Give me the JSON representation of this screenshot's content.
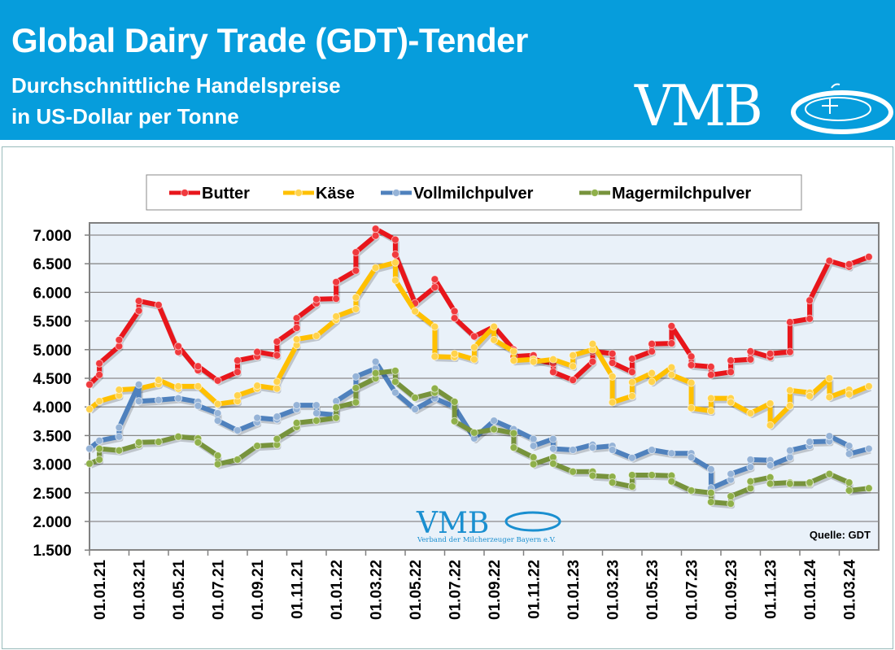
{
  "header": {
    "title": "Global Dairy Trade (GDT)-Tender",
    "subtitle_line1": "Durchschnittliche Handelspreise",
    "subtitle_line2": "in US-Dollar per Tonne",
    "logo_text": "VMB"
  },
  "watermark": {
    "logo_text": "VMB",
    "org_name": "Verband der Milcherzeuger Bayern e.V."
  },
  "colors": {
    "header_bg": "#069ddc",
    "plot_bg": "#e9f1f9",
    "grid": "#8a8a8a"
  },
  "chart_data": {
    "type": "line",
    "title": "Global Dairy Trade (GDT)-Tender",
    "ylabel": "US-Dollar per Tonne",
    "source": "Quelle:  GDT",
    "x_unit": "months since 01.01.21",
    "ylim": [
      1500,
      7000
    ],
    "yticks": [
      "7.000",
      "6.500",
      "6.000",
      "5.500",
      "5.000",
      "4.500",
      "4.000",
      "3.500",
      "3.000",
      "2.500",
      "2.000",
      "1.500"
    ],
    "ytick_values": [
      7000,
      6500,
      6000,
      5500,
      5000,
      4500,
      4000,
      3500,
      3000,
      2500,
      2000,
      1500
    ],
    "xticks": [
      "01.01.21",
      "01.03.21",
      "01.05.21",
      "01.07.21",
      "01.09.21",
      "01.11.21",
      "01.01.22",
      "01.03.22",
      "01.05.22",
      "01.07.22",
      "01.09.22",
      "01.11.22",
      "01.01.23",
      "01.03.23",
      "01.05.23",
      "01.07.23",
      "01.09.23",
      "01.11.23",
      "01.01.24",
      "01.03.24"
    ],
    "grid": true,
    "legend_position": "top",
    "series": [
      {
        "name": "Butter",
        "color": "#e8161b",
        "marker": "#f03a3e",
        "points": [
          [
            0,
            4390
          ],
          [
            0.5,
            4560
          ],
          [
            0.5,
            4760
          ],
          [
            1.5,
            5060
          ],
          [
            1.5,
            5170
          ],
          [
            2.5,
            5680
          ],
          [
            2.5,
            5850
          ],
          [
            3.5,
            5780
          ],
          [
            4.5,
            4960
          ],
          [
            4.5,
            5060
          ],
          [
            5.5,
            4640
          ],
          [
            5.5,
            4710
          ],
          [
            6.5,
            4460
          ],
          [
            7.5,
            4610
          ],
          [
            7.5,
            4810
          ],
          [
            8.5,
            4880
          ],
          [
            8.5,
            4960
          ],
          [
            9.5,
            4900
          ],
          [
            9.5,
            5140
          ],
          [
            10.5,
            5380
          ],
          [
            10.5,
            5550
          ],
          [
            11.5,
            5810
          ],
          [
            11.5,
            5880
          ],
          [
            12.5,
            5890
          ],
          [
            12.5,
            6180
          ],
          [
            13.5,
            6380
          ],
          [
            13.5,
            6700
          ],
          [
            14.5,
            6990
          ],
          [
            14.5,
            7110
          ],
          [
            15.5,
            6920
          ],
          [
            15.5,
            6660
          ],
          [
            16.5,
            5810
          ],
          [
            17.5,
            6090
          ],
          [
            17.5,
            6230
          ],
          [
            18.5,
            5670
          ],
          [
            18.5,
            5550
          ],
          [
            19.5,
            5230
          ],
          [
            20.5,
            5400
          ],
          [
            21.5,
            5000
          ],
          [
            21.5,
            4880
          ],
          [
            22.5,
            4900
          ],
          [
            22.5,
            4830
          ],
          [
            23.5,
            4760
          ],
          [
            23.5,
            4610
          ],
          [
            24.5,
            4470
          ],
          [
            25.5,
            4790
          ],
          [
            25.5,
            4970
          ],
          [
            26.5,
            4930
          ],
          [
            26.5,
            4770
          ],
          [
            27.5,
            4610
          ],
          [
            27.5,
            4840
          ],
          [
            28.5,
            4970
          ],
          [
            28.5,
            5100
          ],
          [
            29.5,
            5110
          ],
          [
            29.5,
            5410
          ],
          [
            30.5,
            4880
          ],
          [
            30.5,
            4730
          ],
          [
            31.5,
            4700
          ],
          [
            31.5,
            4560
          ],
          [
            32.5,
            4610
          ],
          [
            32.5,
            4810
          ],
          [
            33.5,
            4830
          ],
          [
            33.5,
            4970
          ],
          [
            34.5,
            4870
          ],
          [
            34.5,
            4930
          ],
          [
            35.5,
            4960
          ],
          [
            35.5,
            5480
          ],
          [
            36.5,
            5540
          ],
          [
            36.5,
            5860
          ],
          [
            37.5,
            6550
          ],
          [
            38.5,
            6450
          ],
          [
            38.5,
            6490
          ],
          [
            39.5,
            6620
          ]
        ]
      },
      {
        "name": "Käse",
        "color": "#ffc000",
        "marker": "#ffd34d",
        "points": [
          [
            0,
            3960
          ],
          [
            0.5,
            4100
          ],
          [
            1.5,
            4200
          ],
          [
            1.5,
            4300
          ],
          [
            2.5,
            4320
          ],
          [
            3.5,
            4400
          ],
          [
            3.5,
            4470
          ],
          [
            4.5,
            4320
          ],
          [
            4.5,
            4360
          ],
          [
            5.5,
            4360
          ],
          [
            6.5,
            4050
          ],
          [
            7.5,
            4100
          ],
          [
            7.5,
            4200
          ],
          [
            8.5,
            4320
          ],
          [
            8.5,
            4370
          ],
          [
            9.5,
            4320
          ],
          [
            9.5,
            4440
          ],
          [
            10.5,
            5080
          ],
          [
            10.5,
            5180
          ],
          [
            11.5,
            5240
          ],
          [
            12.5,
            5520
          ],
          [
            12.5,
            5580
          ],
          [
            13.5,
            5710
          ],
          [
            13.5,
            5910
          ],
          [
            14.5,
            6430
          ],
          [
            15.5,
            6520
          ],
          [
            15.5,
            6210
          ],
          [
            16.5,
            5670
          ],
          [
            17.5,
            5400
          ],
          [
            17.5,
            4880
          ],
          [
            18.5,
            4870
          ],
          [
            18.5,
            4930
          ],
          [
            19.5,
            4830
          ],
          [
            19.5,
            5040
          ],
          [
            20.5,
            5400
          ],
          [
            20.5,
            5170
          ],
          [
            21.5,
            4970
          ],
          [
            21.5,
            4810
          ],
          [
            22.5,
            4830
          ],
          [
            22.5,
            4790
          ],
          [
            23.5,
            4830
          ],
          [
            24.5,
            4710
          ],
          [
            24.5,
            4900
          ],
          [
            25.5,
            5000
          ],
          [
            25.5,
            5100
          ],
          [
            26.5,
            4530
          ],
          [
            26.5,
            4080
          ],
          [
            27.5,
            4190
          ],
          [
            27.5,
            4430
          ],
          [
            28.5,
            4590
          ],
          [
            28.5,
            4440
          ],
          [
            29.5,
            4690
          ],
          [
            29.5,
            4560
          ],
          [
            30.5,
            4420
          ],
          [
            30.5,
            3980
          ],
          [
            31.5,
            3930
          ],
          [
            31.5,
            4150
          ],
          [
            32.5,
            4150
          ],
          [
            32.5,
            4080
          ],
          [
            33.5,
            3890
          ],
          [
            34.5,
            4060
          ],
          [
            34.5,
            3680
          ],
          [
            35.5,
            4020
          ],
          [
            35.5,
            4290
          ],
          [
            36.5,
            4250
          ],
          [
            36.5,
            4190
          ],
          [
            37.5,
            4500
          ],
          [
            37.5,
            4170
          ],
          [
            38.5,
            4300
          ],
          [
            38.5,
            4220
          ],
          [
            39.5,
            4360
          ]
        ]
      },
      {
        "name": "Vollmilchpulver",
        "color": "#4f81bd",
        "marker": "#95b3d7",
        "points": [
          [
            0,
            3270
          ],
          [
            0.5,
            3410
          ],
          [
            1.5,
            3480
          ],
          [
            1.5,
            3640
          ],
          [
            2.5,
            4390
          ],
          [
            2.5,
            4100
          ],
          [
            3.5,
            4120
          ],
          [
            4.5,
            4150
          ],
          [
            5.5,
            4090
          ],
          [
            5.5,
            4020
          ],
          [
            6.5,
            3890
          ],
          [
            6.5,
            3760
          ],
          [
            7.5,
            3590
          ],
          [
            8.5,
            3730
          ],
          [
            8.5,
            3810
          ],
          [
            9.5,
            3780
          ],
          [
            9.5,
            3830
          ],
          [
            10.5,
            3960
          ],
          [
            10.5,
            4030
          ],
          [
            11.5,
            4030
          ],
          [
            11.5,
            3890
          ],
          [
            12.5,
            3860
          ],
          [
            12.5,
            4100
          ],
          [
            13.5,
            4320
          ],
          [
            13.5,
            4530
          ],
          [
            14.5,
            4670
          ],
          [
            14.5,
            4790
          ],
          [
            15.5,
            4250
          ],
          [
            16.5,
            3960
          ],
          [
            17.5,
            4150
          ],
          [
            18.5,
            4000
          ],
          [
            19.5,
            3450
          ],
          [
            20.5,
            3760
          ],
          [
            21.5,
            3610
          ],
          [
            22.5,
            3440
          ],
          [
            22.5,
            3320
          ],
          [
            23.5,
            3440
          ],
          [
            23.5,
            3270
          ],
          [
            24.5,
            3250
          ],
          [
            25.5,
            3340
          ],
          [
            25.5,
            3290
          ],
          [
            26.5,
            3320
          ],
          [
            26.5,
            3250
          ],
          [
            27.5,
            3110
          ],
          [
            28.5,
            3250
          ],
          [
            29.5,
            3190
          ],
          [
            30.5,
            3190
          ],
          [
            30.5,
            3120
          ],
          [
            31.5,
            2910
          ],
          [
            31.5,
            2580
          ],
          [
            32.5,
            2730
          ],
          [
            32.5,
            2830
          ],
          [
            33.5,
            2950
          ],
          [
            33.5,
            3080
          ],
          [
            34.5,
            3070
          ],
          [
            34.5,
            2980
          ],
          [
            35.5,
            3120
          ],
          [
            35.5,
            3240
          ],
          [
            36.5,
            3320
          ],
          [
            36.5,
            3390
          ],
          [
            37.5,
            3400
          ],
          [
            37.5,
            3490
          ],
          [
            38.5,
            3320
          ],
          [
            38.5,
            3180
          ],
          [
            39.5,
            3270
          ]
        ]
      },
      {
        "name": "Magermilchpulver",
        "color": "#77933c",
        "marker": "#8fb04a",
        "points": [
          [
            0,
            3010
          ],
          [
            0.5,
            3080
          ],
          [
            0.5,
            3270
          ],
          [
            1.5,
            3240
          ],
          [
            2.5,
            3340
          ],
          [
            2.5,
            3380
          ],
          [
            3.5,
            3390
          ],
          [
            4.5,
            3480
          ],
          [
            5.5,
            3450
          ],
          [
            5.5,
            3380
          ],
          [
            6.5,
            3150
          ],
          [
            6.5,
            3000
          ],
          [
            7.5,
            3080
          ],
          [
            8.5,
            3320
          ],
          [
            9.5,
            3340
          ],
          [
            9.5,
            3440
          ],
          [
            10.5,
            3650
          ],
          [
            10.5,
            3720
          ],
          [
            11.5,
            3760
          ],
          [
            12.5,
            3810
          ],
          [
            12.5,
            3990
          ],
          [
            13.5,
            4080
          ],
          [
            13.5,
            4330
          ],
          [
            14.5,
            4500
          ],
          [
            14.5,
            4590
          ],
          [
            15.5,
            4630
          ],
          [
            15.5,
            4440
          ],
          [
            16.5,
            4160
          ],
          [
            17.5,
            4250
          ],
          [
            17.5,
            4320
          ],
          [
            18.5,
            4090
          ],
          [
            18.5,
            3750
          ],
          [
            19.5,
            3550
          ],
          [
            20.5,
            3610
          ],
          [
            21.5,
            3540
          ],
          [
            21.5,
            3290
          ],
          [
            22.5,
            3120
          ],
          [
            22.5,
            3000
          ],
          [
            23.5,
            3120
          ],
          [
            23.5,
            3010
          ],
          [
            24.5,
            2870
          ],
          [
            25.5,
            2870
          ],
          [
            25.5,
            2800
          ],
          [
            26.5,
            2780
          ],
          [
            26.5,
            2680
          ],
          [
            27.5,
            2610
          ],
          [
            27.5,
            2810
          ],
          [
            28.5,
            2810
          ],
          [
            29.5,
            2800
          ],
          [
            29.5,
            2700
          ],
          [
            30.5,
            2540
          ],
          [
            31.5,
            2500
          ],
          [
            31.5,
            2340
          ],
          [
            32.5,
            2310
          ],
          [
            32.5,
            2440
          ],
          [
            33.5,
            2580
          ],
          [
            33.5,
            2700
          ],
          [
            34.5,
            2770
          ],
          [
            34.5,
            2660
          ],
          [
            35.5,
            2680
          ],
          [
            35.5,
            2660
          ],
          [
            36.5,
            2660
          ],
          [
            36.5,
            2680
          ],
          [
            37.5,
            2830
          ],
          [
            38.5,
            2680
          ],
          [
            38.5,
            2540
          ],
          [
            39.5,
            2580
          ]
        ]
      }
    ]
  }
}
